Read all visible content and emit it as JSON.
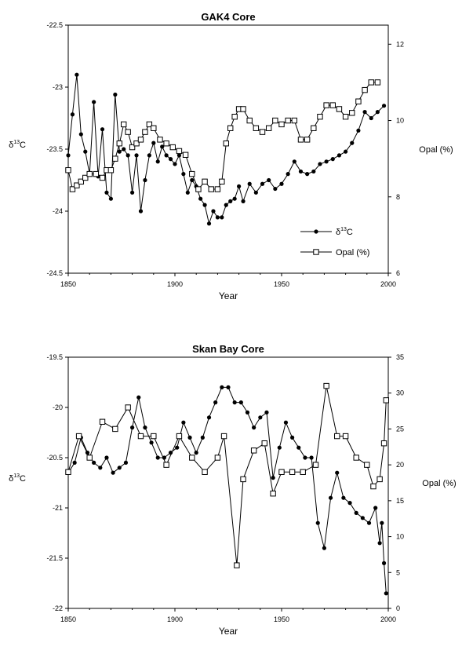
{
  "chart_data": [
    {
      "type": "line",
      "title": "GAK4 Core",
      "xlabel": "Year",
      "ylabel_left": "δ13C",
      "ylabel_right": "Opal (%)",
      "xlim": [
        1850,
        2000
      ],
      "ylim_left": [
        -24.5,
        -22.5
      ],
      "ylim_right": [
        6,
        12.5
      ],
      "xticks": [
        1850,
        1900,
        1950,
        2000
      ],
      "yticks_left": [
        -24.5,
        -24,
        -23.5,
        -23,
        -22.5
      ],
      "yticks_right": [
        6,
        8,
        10,
        12
      ],
      "grid": false,
      "legend": {
        "position": "lower-right",
        "entries": [
          {
            "label_main": "δ",
            "label_sup": "13",
            "label_tail": "C",
            "marker": "filled-circle"
          },
          {
            "label": "Opal (%)",
            "marker": "open-square"
          }
        ]
      },
      "series": [
        {
          "name": "δ13C",
          "axis": "left",
          "marker": "filled-circle",
          "x": [
            1850,
            1852,
            1854,
            1856,
            1858,
            1860,
            1862,
            1864,
            1866,
            1868,
            1870,
            1872,
            1874,
            1876,
            1878,
            1880,
            1882,
            1884,
            1886,
            1888,
            1890,
            1892,
            1894,
            1896,
            1898,
            1900,
            1902,
            1904,
            1906,
            1908,
            1910,
            1912,
            1914,
            1916,
            1918,
            1920,
            1922,
            1924,
            1926,
            1928,
            1930,
            1932,
            1935,
            1938,
            1941,
            1944,
            1947,
            1950,
            1953,
            1956,
            1959,
            1962,
            1965,
            1968,
            1971,
            1974,
            1977,
            1980,
            1983,
            1986,
            1989,
            1992,
            1995,
            1998
          ],
          "y": [
            -23.55,
            -23.22,
            -22.9,
            -23.38,
            -23.52,
            -23.7,
            -23.12,
            -23.72,
            -23.34,
            -23.85,
            -23.9,
            -23.06,
            -23.52,
            -23.5,
            -23.55,
            -23.85,
            -23.55,
            -24.0,
            -23.75,
            -23.55,
            -23.45,
            -23.6,
            -23.48,
            -23.55,
            -23.58,
            -23.62,
            -23.55,
            -23.7,
            -23.85,
            -23.75,
            -23.8,
            -23.9,
            -23.95,
            -24.1,
            -24.0,
            -24.05,
            -24.05,
            -23.95,
            -23.92,
            -23.9,
            -23.8,
            -23.92,
            -23.78,
            -23.85,
            -23.78,
            -23.75,
            -23.82,
            -23.78,
            -23.7,
            -23.6,
            -23.68,
            -23.7,
            -23.68,
            -23.62,
            -23.6,
            -23.58,
            -23.55,
            -23.52,
            -23.45,
            -23.35,
            -23.2,
            -23.25,
            -23.2,
            -23.15
          ]
        },
        {
          "name": "Opal (%)",
          "axis": "right",
          "marker": "open-square",
          "x": [
            1850,
            1852,
            1854,
            1856,
            1858,
            1860,
            1863,
            1866,
            1868,
            1870,
            1872,
            1874,
            1876,
            1878,
            1880,
            1882,
            1884,
            1886,
            1888,
            1890,
            1893,
            1896,
            1899,
            1902,
            1905,
            1908,
            1911,
            1914,
            1917,
            1920,
            1922,
            1924,
            1926,
            1928,
            1930,
            1932,
            1935,
            1938,
            1941,
            1944,
            1947,
            1950,
            1953,
            1956,
            1959,
            1962,
            1965,
            1968,
            1971,
            1974,
            1977,
            1980,
            1983,
            1986,
            1989,
            1992,
            1995
          ],
          "y": [
            8.7,
            8.2,
            8.3,
            8.4,
            8.5,
            8.6,
            8.6,
            8.5,
            8.7,
            8.7,
            9.0,
            9.4,
            9.9,
            9.7,
            9.3,
            9.4,
            9.5,
            9.7,
            9.9,
            9.8,
            9.5,
            9.4,
            9.3,
            9.2,
            9.1,
            8.6,
            8.2,
            8.4,
            8.2,
            8.2,
            8.4,
            9.4,
            9.8,
            10.1,
            10.3,
            10.3,
            10.0,
            9.8,
            9.7,
            9.8,
            10.0,
            9.9,
            10.0,
            10.0,
            9.5,
            9.5,
            9.8,
            10.1,
            10.4,
            10.4,
            10.3,
            10.1,
            10.2,
            10.5,
            10.8,
            11.0,
            11.0
          ]
        }
      ]
    },
    {
      "type": "line",
      "title": "Skan Bay Core",
      "xlabel": "Year",
      "ylabel_left": "δ13C",
      "ylabel_right": "Opal (%)",
      "xlim": [
        1850,
        2000
      ],
      "ylim_left": [
        -22,
        -19.5
      ],
      "ylim_right": [
        0,
        35
      ],
      "xticks": [
        1850,
        1900,
        1950,
        2000
      ],
      "yticks_left": [
        -22,
        -21.5,
        -21,
        -20.5,
        -20,
        -19.5
      ],
      "yticks_right": [
        0,
        5,
        10,
        15,
        20,
        25,
        30,
        35
      ],
      "grid": false,
      "series": [
        {
          "name": "δ13C",
          "axis": "left",
          "marker": "filled-circle",
          "x": [
            1850,
            1853,
            1856,
            1859,
            1862,
            1865,
            1868,
            1871,
            1874,
            1877,
            1880,
            1883,
            1886,
            1889,
            1892,
            1895,
            1898,
            1901,
            1904,
            1907,
            1910,
            1913,
            1916,
            1919,
            1922,
            1925,
            1928,
            1931,
            1934,
            1937,
            1940,
            1943,
            1946,
            1949,
            1952,
            1955,
            1958,
            1961,
            1964,
            1967,
            1970,
            1973,
            1976,
            1979,
            1982,
            1985,
            1988,
            1991,
            1994,
            1996,
            1997,
            1998,
            1999
          ],
          "y": [
            -20.65,
            -20.55,
            -20.3,
            -20.45,
            -20.55,
            -20.6,
            -20.5,
            -20.65,
            -20.6,
            -20.55,
            -20.2,
            -19.9,
            -20.2,
            -20.35,
            -20.5,
            -20.5,
            -20.45,
            -20.4,
            -20.15,
            -20.3,
            -20.45,
            -20.3,
            -20.1,
            -19.95,
            -19.8,
            -19.8,
            -19.95,
            -19.95,
            -20.05,
            -20.2,
            -20.1,
            -20.05,
            -20.7,
            -20.4,
            -20.15,
            -20.3,
            -20.4,
            -20.5,
            -20.5,
            -21.15,
            -21.4,
            -20.9,
            -20.65,
            -20.9,
            -20.95,
            -21.05,
            -21.1,
            -21.15,
            -21.0,
            -21.35,
            -21.15,
            -21.55,
            -21.85
          ]
        },
        {
          "name": "Opal (%)",
          "axis": "right",
          "marker": "open-square",
          "x": [
            1850,
            1855,
            1860,
            1866,
            1872,
            1878,
            1884,
            1890,
            1896,
            1902,
            1908,
            1914,
            1920,
            1923,
            1929,
            1932,
            1937,
            1942,
            1946,
            1950,
            1955,
            1960,
            1966,
            1971,
            1976,
            1980,
            1985,
            1990,
            1993,
            1996,
            1998,
            1999
          ],
          "y": [
            19,
            24,
            21,
            26,
            25,
            28,
            24,
            24,
            20,
            24,
            21,
            19,
            21,
            24,
            6,
            18,
            22,
            23,
            16,
            19,
            19,
            19,
            20,
            31,
            24,
            24,
            21,
            20,
            17,
            18,
            23,
            29
          ]
        }
      ]
    }
  ]
}
